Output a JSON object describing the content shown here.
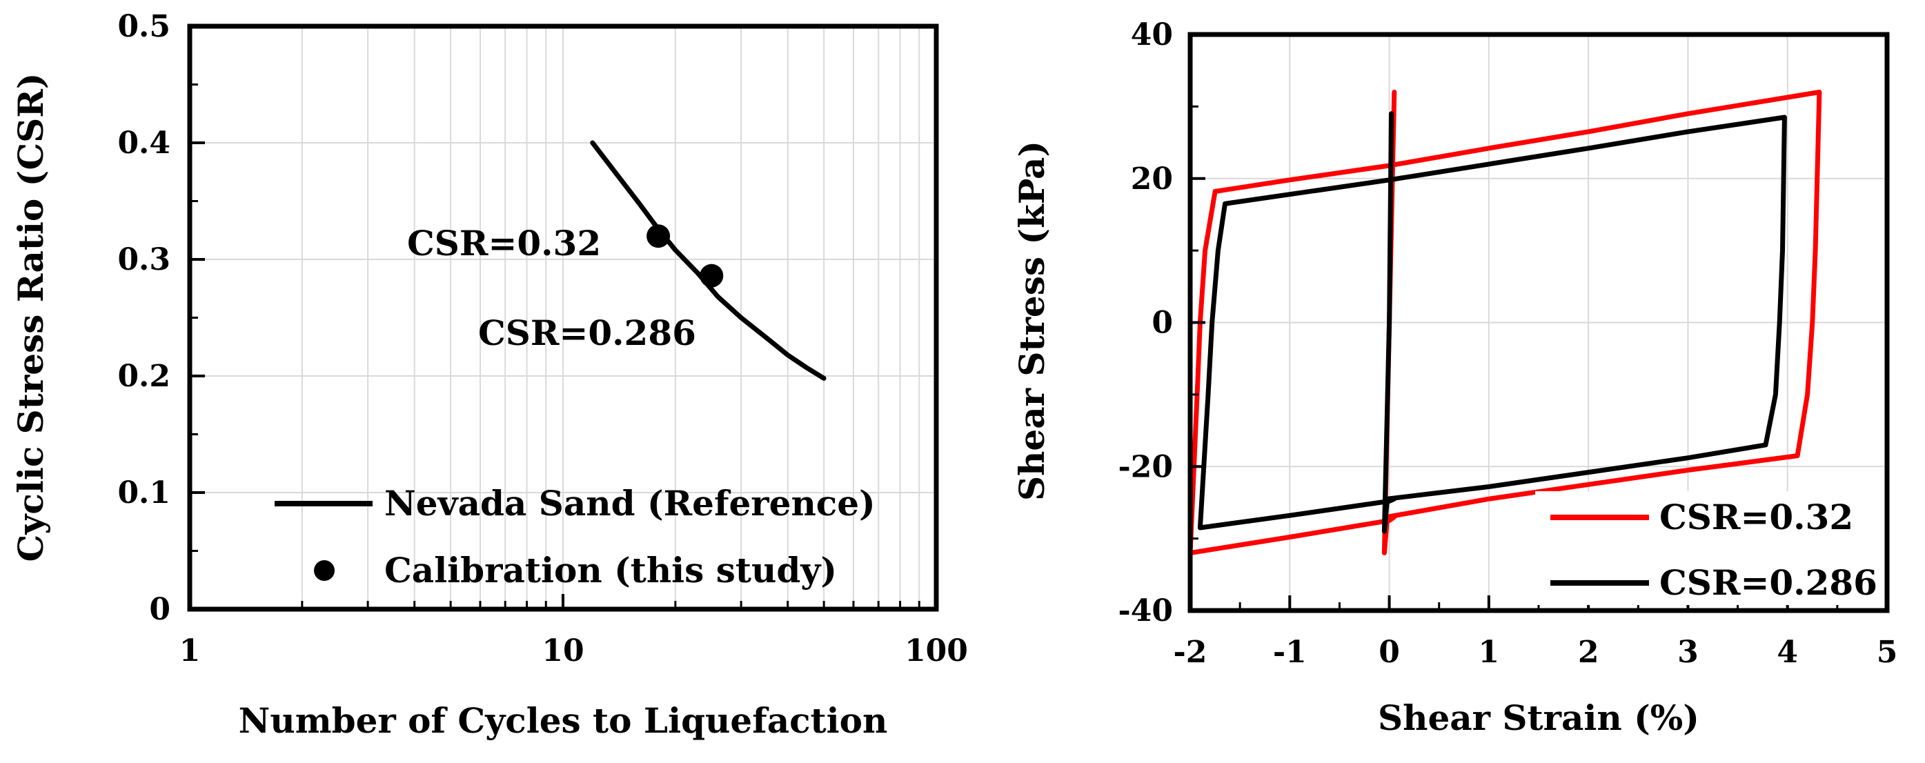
{
  "chart_data": [
    {
      "type": "line",
      "xlabel": "Number of Cycles to Liquefaction",
      "ylabel": "Cyclic Stress Ratio (CSR)",
      "x_scale": "log",
      "xlim": [
        1,
        100
      ],
      "ylim": [
        0,
        0.5
      ],
      "x_ticks": [
        1,
        10,
        100
      ],
      "x_tick_labels": [
        "1",
        "10",
        "100"
      ],
      "y_ticks": [
        0,
        0.1,
        0.2,
        0.3,
        0.4,
        0.5
      ],
      "y_tick_labels": [
        "0",
        "0.1",
        "0.2",
        "0.3",
        "0.4",
        "0.5"
      ],
      "grid": true,
      "legend_position": "bottom-center",
      "series": [
        {
          "name": "Nevada Sand (Reference)",
          "kind": "line",
          "color": "#000000",
          "points": [
            [
              12,
              0.4
            ],
            [
              14,
              0.372
            ],
            [
              16,
              0.348
            ],
            [
              18,
              0.326
            ],
            [
              20,
              0.308
            ],
            [
              23,
              0.288
            ],
            [
              26,
              0.268
            ],
            [
              30,
              0.25
            ],
            [
              35,
              0.233
            ],
            [
              40,
              0.218
            ],
            [
              45,
              0.207
            ],
            [
              50,
              0.198
            ]
          ]
        },
        {
          "name": "Calibration (this study)",
          "kind": "scatter",
          "color": "#000000",
          "points": [
            [
              18,
              0.32
            ],
            [
              25,
              0.286
            ]
          ]
        }
      ],
      "annotations": [
        {
          "text": "CSR=0.32",
          "x": 18,
          "y": 0.32
        },
        {
          "text": "CSR=0.286",
          "x": 25,
          "y": 0.286
        }
      ]
    },
    {
      "type": "line",
      "xlabel": "Shear Strain (%)",
      "ylabel": "Shear Stress (kPa)",
      "xlim": [
        -2,
        5
      ],
      "ylim": [
        -40,
        40
      ],
      "x_ticks": [
        -2,
        -1,
        0,
        1,
        2,
        3,
        4,
        5
      ],
      "x_tick_labels": [
        "-2",
        "-1",
        "0",
        "1",
        "2",
        "3",
        "4",
        "5"
      ],
      "y_ticks": [
        -40,
        -20,
        0,
        20,
        40
      ],
      "y_tick_labels": [
        "-40",
        "-20",
        "0",
        "20",
        "40"
      ],
      "grid": true,
      "legend_position": "bottom-right",
      "series": [
        {
          "name": "CSR=0.32",
          "color": "#ff0000",
          "points": [
            [
              0.05,
              32
            ],
            [
              0.0,
              0
            ],
            [
              -0.05,
              -32
            ],
            [
              -0.02,
              -27
            ],
            [
              1.0,
              -24.5
            ],
            [
              2.0,
              -22.5
            ],
            [
              3.0,
              -20.5
            ],
            [
              4.1,
              -18.5
            ],
            [
              4.2,
              -10
            ],
            [
              4.25,
              0
            ],
            [
              4.28,
              10
            ],
            [
              4.32,
              32
            ],
            [
              3.0,
              29
            ],
            [
              2.0,
              26.5
            ],
            [
              1.0,
              24.2
            ],
            [
              0.0,
              21.8
            ],
            [
              -1.0,
              19.8
            ],
            [
              -1.75,
              18.2
            ],
            [
              -1.85,
              10
            ],
            [
              -1.9,
              0
            ],
            [
              -1.93,
              -10
            ],
            [
              -2.0,
              -32
            ],
            [
              -1.0,
              -29.8
            ],
            [
              0.0,
              -27.5
            ],
            [
              0.05,
              -27
            ]
          ]
        },
        {
          "name": "CSR=0.286",
          "color": "#000000",
          "points": [
            [
              0.02,
              29
            ],
            [
              0.0,
              0
            ],
            [
              -0.05,
              -29
            ],
            [
              -0.02,
              -24.5
            ],
            [
              1.0,
              -22.8
            ],
            [
              2.0,
              -20.8
            ],
            [
              3.0,
              -18.8
            ],
            [
              3.78,
              -17
            ],
            [
              3.88,
              -10
            ],
            [
              3.92,
              0
            ],
            [
              3.95,
              10
            ],
            [
              3.97,
              28.5
            ],
            [
              3.0,
              26.5
            ],
            [
              2.0,
              24.2
            ],
            [
              1.0,
              22
            ],
            [
              0.0,
              19.8
            ],
            [
              -1.0,
              17.8
            ],
            [
              -1.65,
              16.5
            ],
            [
              -1.72,
              10
            ],
            [
              -1.78,
              0
            ],
            [
              -1.82,
              -10
            ],
            [
              -1.9,
              -28.5
            ],
            [
              -1.0,
              -26.8
            ],
            [
              0.0,
              -24.8
            ],
            [
              0.05,
              -24.5
            ]
          ]
        }
      ]
    }
  ]
}
